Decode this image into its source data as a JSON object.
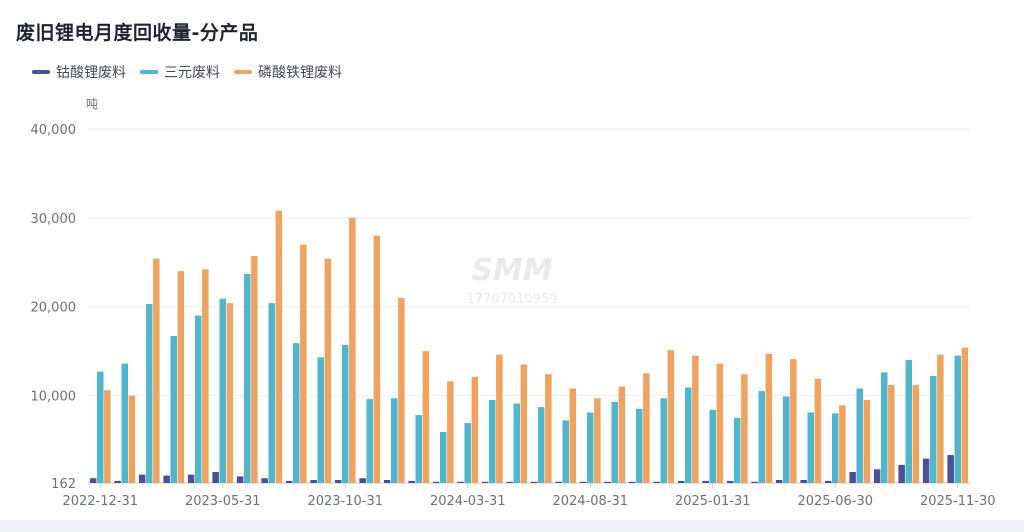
{
  "header": {
    "title": "废旧锂电月度回收量-分产品"
  },
  "watermark": {
    "logo": "SMM",
    "phone": "17707010959"
  },
  "colors": {
    "cobalt": "#4a4f9a",
    "ternary": "#4fb6ce",
    "lfp": "#f0a35e",
    "grid": "#eceef3",
    "axis_text": "#6b7080"
  },
  "chart_data": {
    "type": "bar",
    "title": "废旧锂电月度回收量-分产品",
    "ylabel": "吨",
    "ylim": [
      162,
      40000
    ],
    "yticks": [
      "162",
      "10,000",
      "20,000",
      "30,000",
      "40,000"
    ],
    "ytick_values": [
      162,
      10000,
      20000,
      30000,
      40000
    ],
    "x_tick_labels": [
      "2022-12-31",
      "2023-05-31",
      "2023-10-31",
      "2024-03-31",
      "2024-08-31",
      "2025-01-31",
      "2025-06-30",
      "2025-11-30"
    ],
    "x_tick_indices": [
      0,
      5,
      10,
      15,
      20,
      25,
      30,
      35
    ],
    "legend_position": "top-left",
    "grid": true,
    "categories": [
      "2022-12-31",
      "2023-01-31",
      "2023-02-28",
      "2023-03-31",
      "2023-04-30",
      "2023-05-31",
      "2023-06-30",
      "2023-07-31",
      "2023-08-31",
      "2023-09-30",
      "2023-10-31",
      "2023-11-30",
      "2023-12-31",
      "2024-01-31",
      "2024-02-29",
      "2024-03-31",
      "2024-04-30",
      "2024-05-31",
      "2024-06-30",
      "2024-07-31",
      "2024-08-31",
      "2024-09-30",
      "2024-10-31",
      "2024-11-30",
      "2024-12-31",
      "2025-01-31",
      "2025-02-28",
      "2025-03-31",
      "2025-04-30",
      "2025-05-31",
      "2025-06-30",
      "2025-07-31",
      "2025-08-31",
      "2025-09-30",
      "2025-10-31",
      "2025-11-30"
    ],
    "series": [
      {
        "name": "钴酸锂废料",
        "values": [
          700,
          400,
          1100,
          1000,
          1100,
          1400,
          900,
          700,
          400,
          500,
          500,
          700,
          500,
          400,
          300,
          300,
          300,
          300,
          300,
          300,
          300,
          300,
          300,
          300,
          400,
          400,
          400,
          300,
          500,
          500,
          400,
          1400,
          1700,
          2200,
          2900,
          3300
        ]
      },
      {
        "name": "三元废料",
        "values": [
          12700,
          13600,
          20300,
          16700,
          19000,
          20900,
          23700,
          20400,
          15900,
          14300,
          15700,
          9600,
          9700,
          7800,
          5900,
          6900,
          9500,
          9100,
          8700,
          7200,
          8100,
          9300,
          8500,
          9700,
          10900,
          8400,
          7500,
          10500,
          9900,
          8100,
          8000,
          10800,
          12600,
          14000,
          12200,
          14500
        ]
      },
      {
        "name": "磷酸铁锂废料",
        "values": [
          10600,
          10000,
          25400,
          24000,
          24200,
          20400,
          25700,
          30800,
          27000,
          25400,
          30000,
          28000,
          21000,
          15000,
          11600,
          12100,
          14600,
          13500,
          12400,
          10800,
          9700,
          11000,
          12500,
          15100,
          14500,
          13600,
          12400,
          14700,
          14100,
          11900,
          8900,
          9500,
          11200,
          11200,
          14600,
          15400
        ]
      }
    ]
  }
}
